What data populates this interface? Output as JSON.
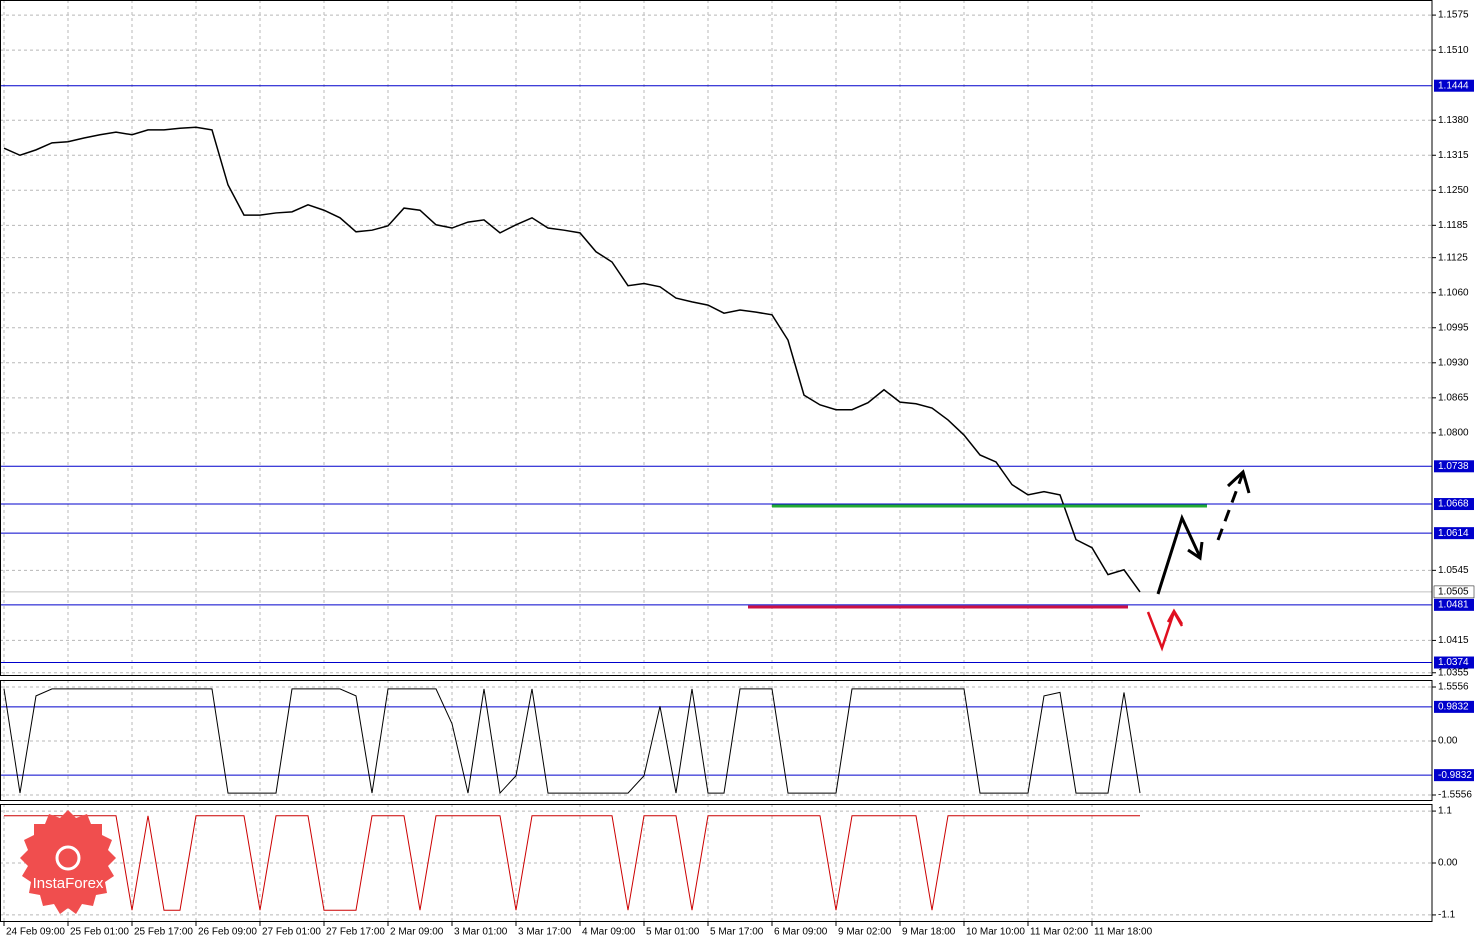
{
  "chart_data": [
    {
      "type": "line",
      "color": "#000000",
      "grid": true,
      "categories": [
        "24 Feb 09:00",
        null,
        null,
        null,
        "25 Feb 01:00",
        null,
        null,
        null,
        "25 Feb 17:00",
        null,
        null,
        null,
        "26 Feb 09:00",
        null,
        null,
        null,
        "27 Feb 01:00",
        null,
        null,
        null,
        "27 Feb 17:00",
        null,
        null,
        null,
        "2 Mar 09:00",
        null,
        null,
        null,
        "3 Mar 01:00",
        null,
        null,
        null,
        "3 Mar 17:00",
        null,
        null,
        null,
        "4 Mar 09:00",
        null,
        null,
        null,
        "5 Mar 01:00",
        null,
        null,
        null,
        "5 Mar 17:00",
        null,
        null,
        null,
        "6 Mar 09:00",
        null,
        null,
        null,
        "9 Mar 02:00",
        null,
        null,
        null,
        "9 Mar 18:00",
        null,
        null,
        null,
        "10 Mar 10:00",
        null,
        null,
        null,
        "11 Mar 02:00",
        null,
        null,
        null,
        "11 Mar 18:00",
        null,
        null,
        null
      ],
      "values": [
        1.1328,
        1.1315,
        1.1325,
        1.1338,
        1.134,
        1.1347,
        1.1353,
        1.1358,
        1.1353,
        1.1362,
        1.1362,
        1.1365,
        1.1367,
        1.1362,
        1.126,
        1.1204,
        1.1204,
        1.1208,
        1.121,
        1.1223,
        1.1213,
        1.1199,
        1.1173,
        1.1176,
        1.1184,
        1.1217,
        1.1213,
        1.1186,
        1.118,
        1.1191,
        1.1195,
        1.1171,
        1.1186,
        1.1199,
        1.118,
        1.1176,
        1.1171,
        1.1136,
        1.1117,
        1.1073,
        1.1077,
        1.1071,
        1.105,
        1.1043,
        1.1037,
        1.1022,
        1.1028,
        1.1024,
        1.1019,
        1.0972,
        1.087,
        1.0852,
        1.0843,
        1.0843,
        1.0856,
        1.088,
        1.0857,
        1.0854,
        1.0846,
        1.0824,
        1.0796,
        1.0759,
        1.0746,
        1.0704,
        1.0685,
        1.0691,
        1.0685,
        1.0602,
        1.0587,
        1.0537,
        1.0546,
        1.0505
      ],
      "ylim": [
        1.0349,
        1.1603
      ],
      "yticks": [
        1.1575,
        {
          "value": 1.151,
          "label": "1.1510"
        },
        {
          "value": 1.138,
          "label": "1.1380"
        },
        1.1315,
        {
          "value": 1.125,
          "label": "1.1250"
        },
        1.1185,
        1.1125,
        {
          "value": 1.106,
          "label": "1.1060"
        },
        1.0995,
        {
          "value": 1.093,
          "label": "1.0930"
        },
        1.0865,
        {
          "value": 1.08,
          "label": "1.0800"
        },
        1.0545,
        1.0415,
        1.0355
      ],
      "levels": [
        1.1444,
        1.0738,
        1.0668,
        1.0614,
        1.0481,
        1.0374
      ],
      "level_color": "#0000cc",
      "current_price": 1.0505
    },
    {
      "type": "line",
      "color": "#000000",
      "grid": true,
      "values": [
        1.5,
        -1.5,
        1.3,
        1.5,
        1.5,
        1.5,
        1.5,
        1.5,
        1.5,
        1.5,
        1.5,
        1.5,
        1.5,
        1.5,
        -1.5,
        -1.5,
        -1.5,
        -1.5,
        1.5,
        1.5,
        1.5,
        1.5,
        1.3,
        -1.5,
        1.5,
        1.5,
        1.5,
        1.5,
        0.5,
        -1.5,
        1.5,
        -1.5,
        -1.0,
        1.5,
        -1.5,
        -1.5,
        -1.5,
        -1.5,
        -1.5,
        -1.5,
        -1.0,
        1.0,
        -1.5,
        1.5,
        -1.5,
        -1.5,
        1.5,
        1.5,
        1.5,
        -1.5,
        -1.5,
        -1.5,
        -1.5,
        1.5,
        1.5,
        1.5,
        1.5,
        1.5,
        1.5,
        1.5,
        1.5,
        -1.5,
        -1.5,
        -1.5,
        -1.5,
        1.3,
        1.4,
        -1.5,
        -1.5,
        -1.5,
        1.4,
        -1.5
      ],
      "ylim": [
        -1.728,
        1.757
      ],
      "yticks": [
        1.5556,
        {
          "value": 0,
          "label": "0.00"
        },
        -1.5556
      ],
      "levels": [
        0.9832,
        -0.9832
      ],
      "level_color": "#0000cc"
    },
    {
      "type": "line",
      "color": "#cc0000",
      "grid": true,
      "values": [
        1,
        1,
        1,
        1,
        1,
        1,
        1,
        1,
        -1,
        1,
        -1,
        -1,
        1,
        1,
        1,
        1,
        -1,
        1,
        1,
        1,
        -1,
        -1,
        -1,
        1,
        1,
        1,
        -1,
        1,
        1,
        1,
        1,
        1,
        -1,
        1,
        1,
        1,
        1,
        1,
        1,
        -1,
        1,
        1,
        1,
        -1,
        1,
        1,
        1,
        1,
        1,
        1,
        1,
        1,
        -1,
        1,
        1,
        1,
        1,
        1,
        -1,
        1,
        1,
        1,
        1,
        1,
        1,
        1,
        1,
        1,
        1,
        1,
        1,
        1
      ],
      "ylim": [
        -1.25,
        1.25
      ],
      "yticks": [
        1.1,
        {
          "value": 0,
          "label": "0.00"
        },
        -1.1
      ]
    }
  ],
  "logo": "InstaForex"
}
